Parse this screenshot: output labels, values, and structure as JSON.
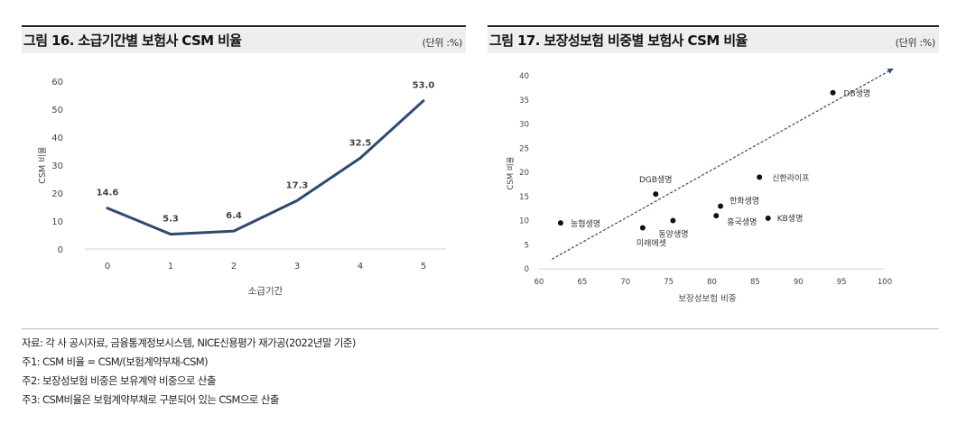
{
  "figures": [
    {
      "title": "그림 16. 소급기간별 보험사 CSM 비율",
      "unit": "(단위 :%)"
    },
    {
      "title": "그림 17. 보장성보험 비중별 보험사 CSM 비율",
      "unit": "(단위 :%)"
    }
  ],
  "notes": [
    "자료: 각 사 공시자료, 금융통계정보시스템, NICE신용평가 재가공(2022년말 기준)",
    "주1: CSM 비율 = CSM/(보험계약부채-CSM)",
    "주2: 보장성보험 비중은 보유계약 비중으로 산출",
    "주3: CSM비율은 보험계약부채로 구분되어 있는 CSM으로 산출"
  ],
  "chart_data": [
    {
      "type": "line",
      "x": [
        0,
        1,
        2,
        3,
        4,
        5
      ],
      "series": [
        {
          "values": [
            14.6,
            5.3,
            6.4,
            17.3,
            32.5,
            53.0
          ]
        }
      ],
      "data_labels": [
        "14.6",
        "5.3",
        "6.4",
        "17.3",
        "32.5",
        "53.0"
      ],
      "xlabel": "소급기간",
      "ylabel": "CSM 비율",
      "ylim": [
        0,
        60
      ],
      "yticks": [
        0,
        10,
        20,
        30,
        40,
        50,
        60
      ],
      "grid": false,
      "line_color": "#2e4a6e"
    },
    {
      "type": "scatter",
      "points": [
        {
          "label": "DB생명",
          "x": 94,
          "y": 36.5
        },
        {
          "label": "신한라이프",
          "x": 85.5,
          "y": 19
        },
        {
          "label": "DGB생명",
          "x": 73.5,
          "y": 15.5
        },
        {
          "label": "한화생명",
          "x": 81,
          "y": 13
        },
        {
          "label": "흥국생명",
          "x": 80.5,
          "y": 11
        },
        {
          "label": "KB생명",
          "x": 86.5,
          "y": 10.5
        },
        {
          "label": "농협생명",
          "x": 62.5,
          "y": 9.5
        },
        {
          "label": "동양생명",
          "x": 75.5,
          "y": 10
        },
        {
          "label": "미래에셋",
          "x": 72,
          "y": 8.5
        }
      ],
      "trendline": {
        "style": "dashed",
        "from": [
          61.5,
          2
        ],
        "to": [
          101,
          41.5
        ]
      },
      "xlabel": "보장성보험 비중",
      "ylabel": "CSM 비율",
      "xlim": [
        60,
        100
      ],
      "ylim": [
        0,
        40
      ],
      "xticks": [
        60,
        65,
        70,
        75,
        80,
        85,
        90,
        95,
        100
      ],
      "yticks": [
        0,
        5,
        10,
        15,
        20,
        25,
        30,
        35,
        40
      ],
      "grid": false,
      "trend_color": "#2e4a6e"
    }
  ]
}
